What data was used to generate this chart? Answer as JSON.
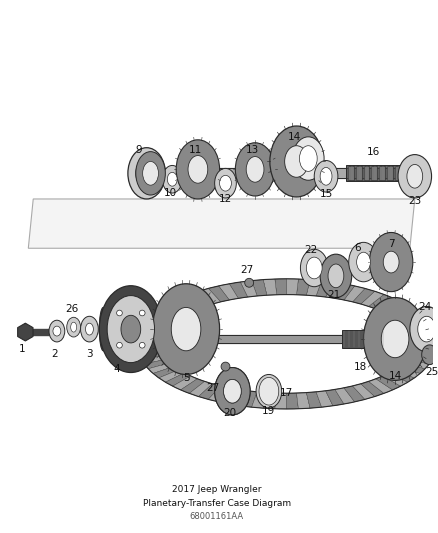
{
  "title": "2017 Jeep Wrangler",
  "subtitle": "Planetary-Transfer Case Diagram",
  "part_num": "68001161AA",
  "bg_color": "#ffffff",
  "line_color": "#2a2a2a",
  "part_dark": "#444444",
  "part_medium": "#888888",
  "part_light": "#cccccc",
  "part_lighter": "#e8e8e8",
  "label_fontsize": 7.5,
  "title_fontsize": 6.5,
  "fig_width": 4.38,
  "fig_height": 5.33,
  "dpi": 100
}
